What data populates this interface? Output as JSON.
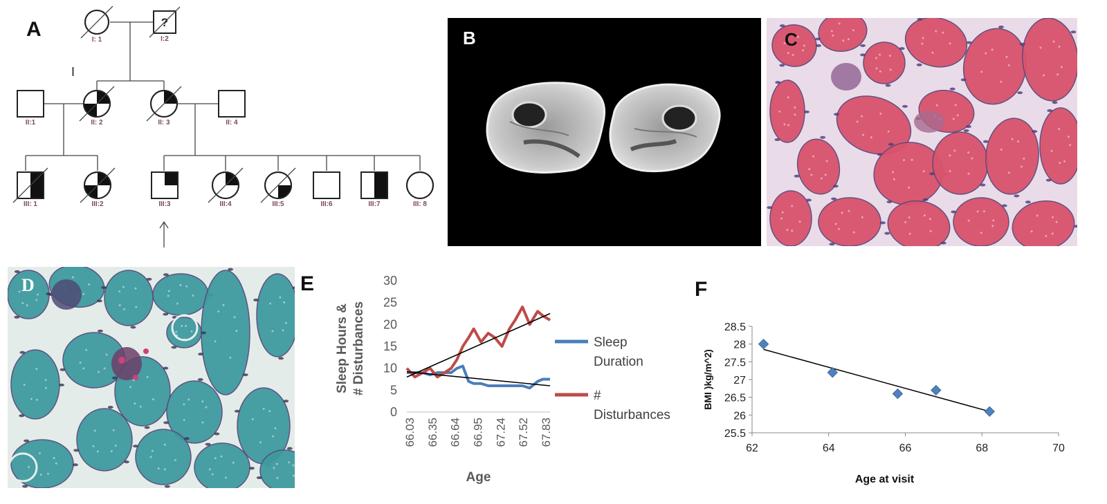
{
  "panels": {
    "a": {
      "letter": "A",
      "annotation": "I"
    },
    "b": {
      "letter": "B"
    },
    "c": {
      "letter": "C"
    },
    "d": {
      "letter": "D"
    },
    "e": {
      "letter": "E"
    },
    "f": {
      "letter": "F"
    }
  },
  "pedigree": {
    "unknown_mark": "?",
    "individuals": [
      {
        "id": "I:1",
        "label": "I: 1",
        "sex": "female",
        "deceased": true,
        "fill": "none"
      },
      {
        "id": "I:2",
        "label": "I:2",
        "sex": "male",
        "deceased": true,
        "fill": "none",
        "unknown": true
      },
      {
        "id": "II:1",
        "label": "II:1",
        "sex": "male",
        "deceased": false,
        "fill": "none"
      },
      {
        "id": "II:2",
        "label": "II: 2",
        "sex": "female",
        "deceased": true,
        "fill": "q-tr-bl"
      },
      {
        "id": "II:3",
        "label": "II: 3",
        "sex": "female",
        "deceased": true,
        "fill": "q-tr"
      },
      {
        "id": "II:4",
        "label": "II: 4",
        "sex": "male",
        "deceased": false,
        "fill": "none"
      },
      {
        "id": "III:1",
        "label": "III: 1",
        "sex": "male",
        "deceased": true,
        "fill": "h-right"
      },
      {
        "id": "III:2",
        "label": "III:2",
        "sex": "female",
        "deceased": true,
        "fill": "q-tr-bl"
      },
      {
        "id": "III:3",
        "label": "III:3",
        "sex": "male",
        "deceased": false,
        "fill": "q-tr",
        "proband": true
      },
      {
        "id": "III:4",
        "label": "III:4",
        "sex": "female",
        "deceased": true,
        "fill": "q-tr"
      },
      {
        "id": "III:5",
        "label": "III:5",
        "sex": "female",
        "deceased": true,
        "fill": "q-br"
      },
      {
        "id": "III:6",
        "label": "III:6",
        "sex": "male",
        "deceased": false,
        "fill": "none"
      },
      {
        "id": "III:7",
        "label": "III:7",
        "sex": "male",
        "deceased": false,
        "fill": "h-right"
      },
      {
        "id": "III:8",
        "label": "III: 8",
        "sex": "female",
        "deceased": false,
        "fill": "none"
      }
    ]
  },
  "colors": {
    "mri_background": "#000000",
    "he_stain": "#d9536c",
    "trichrome_stain": "#3f9aa0",
    "sleep_duration": "#4a7ebb",
    "disturbances": "#be4b48",
    "bmi_marker": "#4f81bd",
    "trendline": "#000000"
  },
  "chart_data": [
    {
      "type": "line",
      "panel": "E",
      "ylabel": "Sleep Hours & # Disturbances",
      "xlabel": "Age",
      "categories": [
        "66.03",
        "66.35",
        "66.64",
        "66.95",
        "67.24",
        "67.52",
        "67.83"
      ],
      "ylim": [
        0,
        30
      ],
      "yticks": [
        0,
        5,
        10,
        15,
        20,
        25,
        30
      ],
      "grid": false,
      "legend_position": "right",
      "series": [
        {
          "name": "Sleep Duration",
          "color": "#4a7ebb",
          "x": [
            66.03,
            66.14,
            66.25,
            66.35,
            66.45,
            66.55,
            66.64,
            66.72,
            66.8,
            66.88,
            66.95,
            67.05,
            67.15,
            67.24,
            67.34,
            67.44,
            67.52,
            67.62,
            67.72,
            67.83,
            67.9,
            68.0
          ],
          "values": [
            9,
            9,
            9,
            8.5,
            9,
            9,
            9,
            10,
            10.5,
            7,
            6.5,
            6.5,
            6,
            6,
            6,
            6,
            6,
            6,
            5.5,
            7,
            7.5,
            7.5
          ]
        },
        {
          "name": "# Disturbances",
          "color": "#be4b48",
          "x": [
            66.03,
            66.14,
            66.25,
            66.35,
            66.45,
            66.55,
            66.64,
            66.72,
            66.8,
            66.88,
            66.95,
            67.05,
            67.15,
            67.24,
            67.34,
            67.44,
            67.52,
            67.62,
            67.72,
            67.83,
            67.9,
            68.0
          ],
          "values": [
            10,
            8,
            9,
            10,
            8,
            9,
            10,
            12,
            15,
            17,
            19,
            16,
            18,
            17,
            15,
            19,
            21,
            24,
            20,
            23,
            22,
            21
          ]
        }
      ],
      "trendlines": [
        {
          "series": "# Disturbances",
          "from": [
            66.03,
            8
          ],
          "to": [
            68.0,
            22.5
          ]
        },
        {
          "series": "Sleep Duration",
          "from": [
            66.03,
            9.2
          ],
          "to": [
            68.0,
            6
          ]
        }
      ]
    },
    {
      "type": "scatter",
      "panel": "F",
      "xlabel": "Age at visit",
      "ylabel": "BMI )kg/m^2)",
      "xlim": [
        62,
        70
      ],
      "ylim": [
        25.5,
        28.5
      ],
      "xticks": [
        62,
        64,
        66,
        68,
        70
      ],
      "yticks": [
        25.5,
        26,
        26.5,
        27,
        27.5,
        28,
        28.5
      ],
      "grid": false,
      "x": [
        62.3,
        64.1,
        65.8,
        66.8,
        68.2
      ],
      "y": [
        28.0,
        27.2,
        26.6,
        26.7,
        26.1
      ],
      "trendline": {
        "from": [
          62.3,
          27.85
        ],
        "to": [
          68.2,
          26.1
        ]
      }
    }
  ]
}
